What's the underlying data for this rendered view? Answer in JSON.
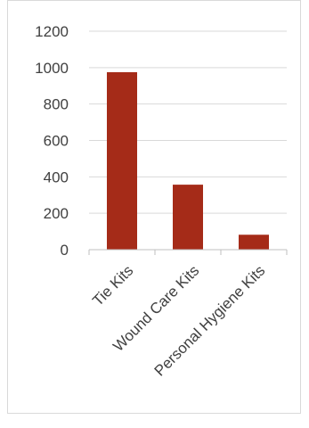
{
  "chart_data": {
    "type": "bar",
    "title": "",
    "xlabel": "",
    "ylabel": "",
    "categories": [
      "Tie Kits",
      "Wound Care Kits",
      "Personal Hygiene Kits"
    ],
    "values": [
      975,
      357,
      82
    ],
    "ylim": [
      0,
      1200
    ],
    "yticks": [
      0,
      200,
      400,
      600,
      800,
      1000,
      1200
    ],
    "grid": true,
    "legend": "none",
    "bar_color": "#a52b18",
    "x_tick_rotation_deg": -45
  }
}
